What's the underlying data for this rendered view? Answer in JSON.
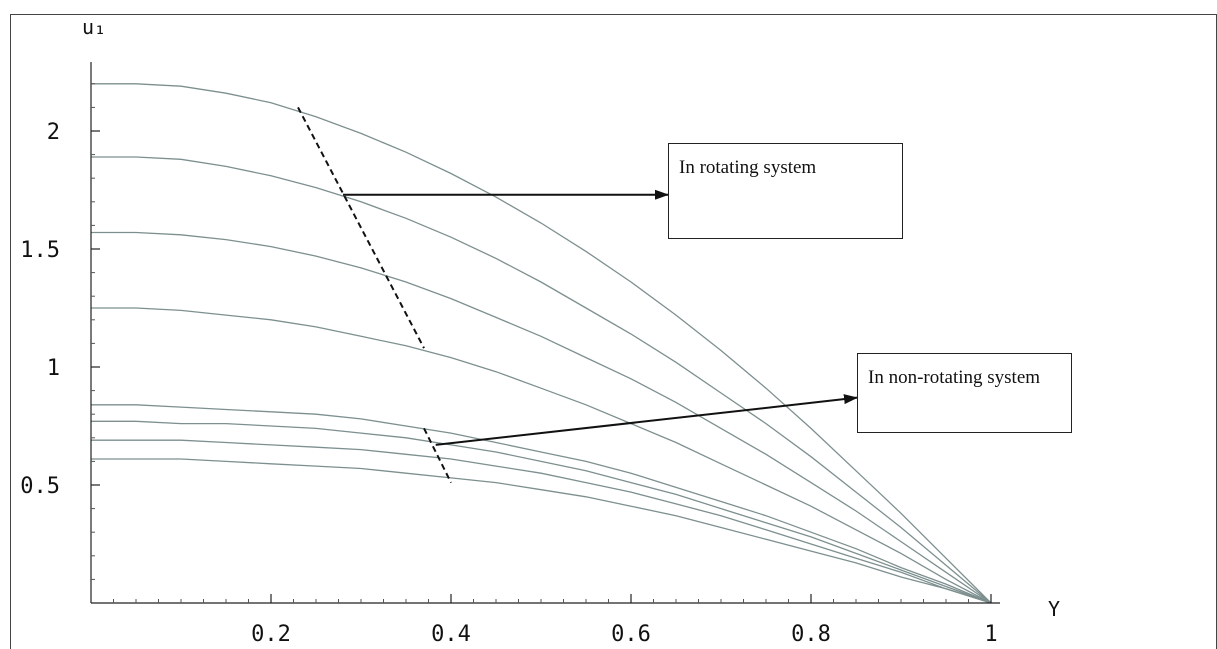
{
  "chart_data": {
    "type": "line",
    "xlabel": "Y",
    "ylabel": "u₁",
    "xlim": [
      0,
      1
    ],
    "ylim": [
      0,
      2.3
    ],
    "xticks": [
      0.2,
      0.4,
      0.6,
      0.8,
      1
    ],
    "xtick_labels": [
      "0.2",
      "0.4",
      "0.6",
      "0.8",
      "1"
    ],
    "yticks": [
      0.5,
      1,
      1.5,
      2
    ],
    "ytick_labels": [
      "0.5",
      "1",
      "1.5",
      "2"
    ],
    "grid": false,
    "series": [
      {
        "group": "rotating",
        "x": [
          0,
          0.05,
          0.1,
          0.15,
          0.2,
          0.25,
          0.3,
          0.35,
          0.4,
          0.45,
          0.5,
          0.55,
          0.6,
          0.65,
          0.7,
          0.75,
          0.8,
          0.85,
          0.9,
          0.95,
          1.0
        ],
        "y": [
          2.2,
          2.2,
          2.19,
          2.16,
          2.12,
          2.06,
          1.99,
          1.91,
          1.82,
          1.72,
          1.61,
          1.49,
          1.36,
          1.22,
          1.07,
          0.91,
          0.74,
          0.56,
          0.38,
          0.19,
          0
        ]
      },
      {
        "group": "rotating",
        "x": [
          0,
          0.05,
          0.1,
          0.15,
          0.2,
          0.25,
          0.3,
          0.35,
          0.4,
          0.45,
          0.5,
          0.55,
          0.6,
          0.65,
          0.7,
          0.75,
          0.8,
          0.85,
          0.9,
          0.95,
          1.0
        ],
        "y": [
          1.89,
          1.89,
          1.88,
          1.85,
          1.81,
          1.76,
          1.7,
          1.63,
          1.55,
          1.46,
          1.36,
          1.25,
          1.14,
          1.02,
          0.89,
          0.76,
          0.62,
          0.47,
          0.32,
          0.16,
          0
        ]
      },
      {
        "group": "rotating",
        "x": [
          0,
          0.05,
          0.1,
          0.15,
          0.2,
          0.25,
          0.3,
          0.35,
          0.4,
          0.45,
          0.5,
          0.55,
          0.6,
          0.65,
          0.7,
          0.75,
          0.8,
          0.85,
          0.9,
          0.95,
          1.0
        ],
        "y": [
          1.57,
          1.57,
          1.56,
          1.54,
          1.51,
          1.47,
          1.42,
          1.36,
          1.29,
          1.21,
          1.13,
          1.04,
          0.95,
          0.85,
          0.74,
          0.63,
          0.51,
          0.39,
          0.26,
          0.13,
          0
        ]
      },
      {
        "group": "rotating",
        "x": [
          0,
          0.05,
          0.1,
          0.15,
          0.2,
          0.25,
          0.3,
          0.35,
          0.4,
          0.45,
          0.5,
          0.55,
          0.6,
          0.65,
          0.7,
          0.75,
          0.8,
          0.85,
          0.9,
          0.95,
          1.0
        ],
        "y": [
          1.25,
          1.25,
          1.24,
          1.22,
          1.2,
          1.17,
          1.13,
          1.09,
          1.04,
          0.98,
          0.91,
          0.84,
          0.76,
          0.68,
          0.59,
          0.5,
          0.41,
          0.31,
          0.21,
          0.1,
          0
        ]
      },
      {
        "group": "non-rotating",
        "x": [
          0,
          0.05,
          0.1,
          0.15,
          0.2,
          0.25,
          0.3,
          0.35,
          0.4,
          0.45,
          0.5,
          0.55,
          0.6,
          0.65,
          0.7,
          0.75,
          0.8,
          0.85,
          0.9,
          0.95,
          1.0
        ],
        "y": [
          0.84,
          0.84,
          0.83,
          0.82,
          0.81,
          0.8,
          0.78,
          0.75,
          0.72,
          0.68,
          0.64,
          0.6,
          0.55,
          0.49,
          0.43,
          0.37,
          0.3,
          0.23,
          0.15,
          0.08,
          0
        ]
      },
      {
        "group": "non-rotating",
        "x": [
          0,
          0.05,
          0.1,
          0.15,
          0.2,
          0.25,
          0.3,
          0.35,
          0.4,
          0.45,
          0.5,
          0.55,
          0.6,
          0.65,
          0.7,
          0.75,
          0.8,
          0.85,
          0.9,
          0.95,
          1.0
        ],
        "y": [
          0.77,
          0.77,
          0.76,
          0.76,
          0.75,
          0.74,
          0.72,
          0.7,
          0.67,
          0.64,
          0.6,
          0.56,
          0.51,
          0.46,
          0.4,
          0.34,
          0.28,
          0.21,
          0.14,
          0.07,
          0
        ]
      },
      {
        "group": "non-rotating",
        "x": [
          0,
          0.05,
          0.1,
          0.15,
          0.2,
          0.25,
          0.3,
          0.35,
          0.4,
          0.45,
          0.5,
          0.55,
          0.6,
          0.65,
          0.7,
          0.75,
          0.8,
          0.85,
          0.9,
          0.95,
          1.0
        ],
        "y": [
          0.69,
          0.69,
          0.69,
          0.68,
          0.67,
          0.66,
          0.65,
          0.63,
          0.61,
          0.58,
          0.55,
          0.51,
          0.47,
          0.42,
          0.37,
          0.31,
          0.25,
          0.19,
          0.13,
          0.06,
          0
        ]
      },
      {
        "group": "non-rotating",
        "x": [
          0,
          0.05,
          0.1,
          0.15,
          0.2,
          0.25,
          0.3,
          0.35,
          0.4,
          0.45,
          0.5,
          0.55,
          0.6,
          0.65,
          0.7,
          0.75,
          0.8,
          0.85,
          0.9,
          0.95,
          1.0
        ],
        "y": [
          0.61,
          0.61,
          0.61,
          0.6,
          0.59,
          0.58,
          0.57,
          0.55,
          0.53,
          0.51,
          0.48,
          0.45,
          0.41,
          0.37,
          0.32,
          0.27,
          0.22,
          0.17,
          0.11,
          0.06,
          0
        ]
      }
    ],
    "annotations": [
      {
        "text": "In rotating system",
        "group": "rotating"
      },
      {
        "text": "In non-rotating system",
        "group": "non-rotating"
      }
    ],
    "dashed_markers": [
      {
        "group": "rotating",
        "from": [
          0.23,
          2.1
        ],
        "to": [
          0.37,
          1.08
        ]
      },
      {
        "group": "non-rotating",
        "from": [
          0.37,
          0.74
        ],
        "to": [
          0.4,
          0.51
        ]
      }
    ],
    "colors": {
      "curve": "#7d8f8f",
      "axis": "#222222",
      "dashed": "#111111"
    }
  }
}
